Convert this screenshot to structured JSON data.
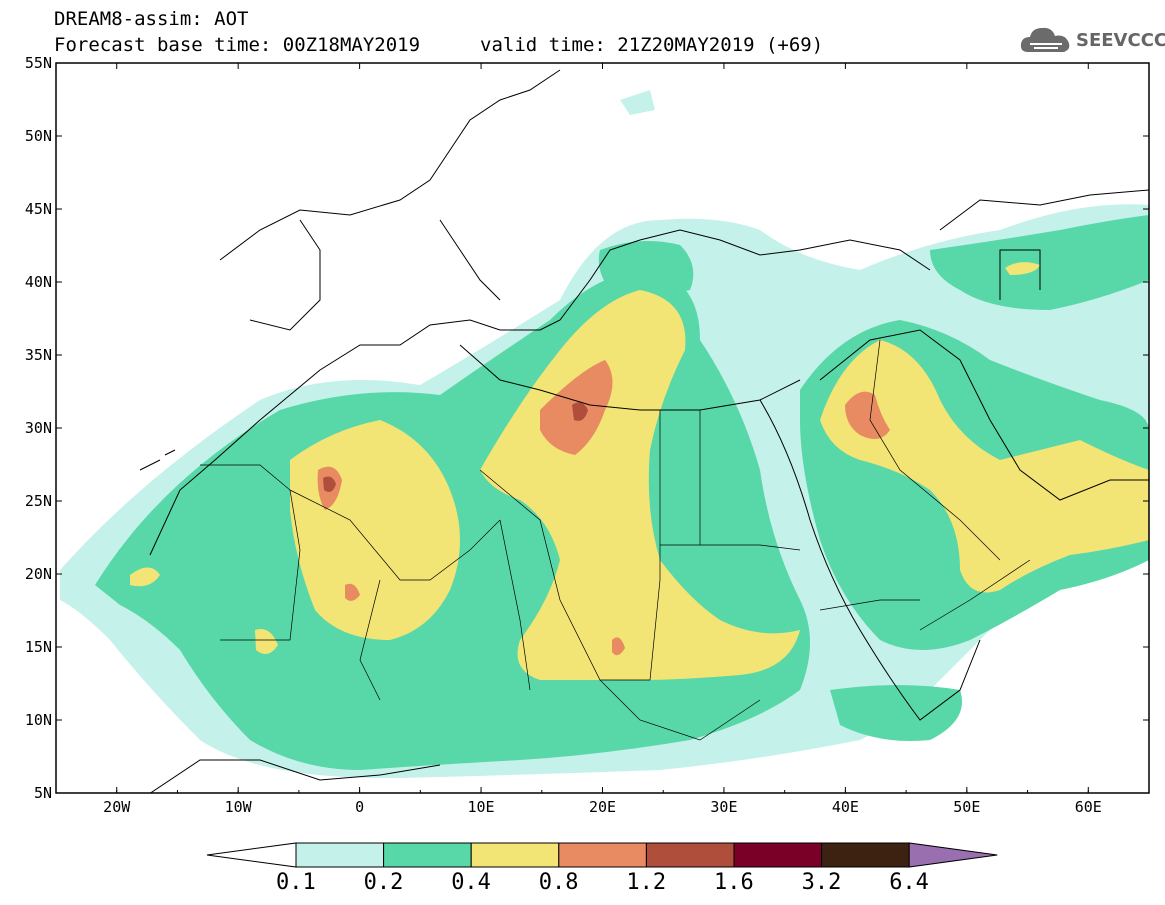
{
  "title": {
    "product": "DREAM8-assim: AOT",
    "base": "Forecast base time: 00Z18MAY2019",
    "valid": "valid time: 21Z20MAY2019 (+69)"
  },
  "logo": {
    "text": "SEEVCCC",
    "icon": "cloud-icon"
  },
  "axes": {
    "lon_ticks": [
      "20W",
      "10W",
      "0",
      "10E",
      "20E",
      "30E",
      "40E",
      "50E",
      "60E"
    ],
    "lat_ticks": [
      "55N",
      "50N",
      "45N",
      "40N",
      "35N",
      "30N",
      "25N",
      "20N",
      "15N",
      "10N",
      "5N"
    ],
    "lon_range": [
      -25,
      65
    ],
    "lat_range": [
      5,
      55
    ]
  },
  "colorbar": {
    "labels": [
      "0.1",
      "0.2",
      "0.4",
      "0.8",
      "1.2",
      "1.6",
      "3.2",
      "6.4"
    ],
    "colors": [
      "#ffffff",
      "#c4f1ea",
      "#58d8a8",
      "#f3e476",
      "#e88a62",
      "#b04e3c",
      "#7a0028",
      "#3d2212",
      "#9a6fb0"
    ]
  }
}
